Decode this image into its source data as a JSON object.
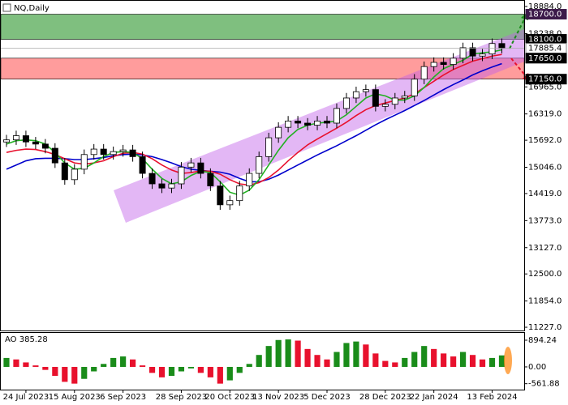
{
  "chart_data": [
    {
      "type": "candlestick",
      "title": "NQ,Daily",
      "open": [
        15650,
        15700,
        15800,
        15650,
        15600,
        15500,
        15150,
        14750,
        15000,
        15350,
        15480,
        15350,
        15420,
        15460,
        15300,
        14900,
        14650,
        14550,
        14650,
        15050,
        15150,
        14900,
        14600,
        14150,
        14250,
        14600,
        14900,
        15300,
        15750,
        16000,
        16150,
        16100,
        16050,
        16150,
        16100,
        16450,
        16700,
        16850,
        16900,
        16500,
        16550,
        16700,
        16750,
        17150,
        17450,
        17550,
        17500,
        17650,
        17900,
        17700,
        17750,
        18000
      ],
      "high": [
        15820,
        15920,
        15920,
        15770,
        15720,
        15620,
        15270,
        15120,
        15470,
        15600,
        15600,
        15540,
        15580,
        15580,
        15420,
        15020,
        14770,
        14770,
        15170,
        15270,
        15270,
        15020,
        14720,
        14370,
        14720,
        15020,
        15420,
        15870,
        16120,
        16270,
        16270,
        16220,
        16270,
        16270,
        16570,
        16820,
        16970,
        17020,
        17020,
        16670,
        16820,
        16870,
        17270,
        17570,
        17670,
        17670,
        17770,
        18020,
        18020,
        17870,
        18120,
        18120
      ],
      "low": [
        15530,
        15580,
        15530,
        15480,
        15380,
        15030,
        14630,
        14630,
        14880,
        15230,
        15230,
        15230,
        15300,
        15180,
        14780,
        14530,
        14430,
        14430,
        14530,
        14930,
        14780,
        14480,
        14030,
        14030,
        14130,
        14480,
        14780,
        15180,
        15630,
        15880,
        15980,
        15930,
        15930,
        15980,
        15980,
        16330,
        16580,
        16730,
        16380,
        16380,
        16430,
        16580,
        16630,
        17030,
        17330,
        17380,
        17380,
        17530,
        17580,
        17580,
        17630,
        17765.4
      ],
      "close": [
        15700,
        15800,
        15650,
        15600,
        15500,
        15150,
        14750,
        15000,
        15350,
        15480,
        15350,
        15420,
        15460,
        15300,
        14900,
        14650,
        14550,
        14650,
        15050,
        15150,
        14900,
        14600,
        14150,
        14250,
        14600,
        14900,
        15300,
        15750,
        16000,
        16150,
        16100,
        16050,
        16150,
        16100,
        16450,
        16700,
        16850,
        16900,
        16500,
        16550,
        16700,
        16750,
        17150,
        17450,
        17550,
        17500,
        17650,
        17900,
        17700,
        17750,
        18000,
        17885.4
      ],
      "up_color": "#ffffff",
      "down_color": "#000000",
      "lines": [
        {
          "color": "#0000cc",
          "values": [
            15000,
            15100,
            15200,
            15250,
            15260,
            15260,
            15250,
            15230,
            15230,
            15250,
            15280,
            15320,
            15350,
            15360,
            15340,
            15300,
            15230,
            15150,
            15060,
            15000,
            14970,
            14950,
            14930,
            14880,
            14780,
            14700,
            14700,
            14760,
            14860,
            14980,
            15100,
            15220,
            15340,
            15450,
            15560,
            15680,
            15800,
            15930,
            16060,
            16180,
            16290,
            16400,
            16520,
            16640,
            16770,
            16900,
            17020,
            17130,
            17250,
            17350,
            17440,
            17520
          ]
        },
        {
          "color": "#e8112d",
          "values": [
            15400,
            15450,
            15480,
            15470,
            15420,
            15350,
            15250,
            15150,
            15120,
            15150,
            15200,
            15300,
            15380,
            15400,
            15360,
            15250,
            15100,
            14980,
            14900,
            14920,
            14960,
            14950,
            14880,
            14750,
            14650,
            14620,
            14680,
            14800,
            14980,
            15200,
            15400,
            15580,
            15720,
            15850,
            15980,
            16120,
            16280,
            16420,
            16520,
            16580,
            16640,
            16700,
            16800,
            16950,
            17100,
            17250,
            17380,
            17480,
            17580,
            17640,
            17700,
            17740
          ]
        },
        {
          "color": "#22b122",
          "values": [
            15600,
            15680,
            15700,
            15680,
            15600,
            15400,
            15150,
            15000,
            15020,
            15150,
            15300,
            15400,
            15420,
            15400,
            15250,
            15000,
            14780,
            14650,
            14700,
            14850,
            14950,
            14920,
            14700,
            14450,
            14380,
            14500,
            14750,
            15100,
            15450,
            15750,
            15950,
            16050,
            16100,
            16120,
            16150,
            16300,
            16500,
            16700,
            16800,
            16750,
            16650,
            16650,
            16750,
            16950,
            17200,
            17400,
            17500,
            17600,
            17750,
            17780,
            17800,
            17850
          ]
        }
      ],
      "zones": [
        {
          "from": 18100,
          "to": 18700,
          "color": "#7fbf7f"
        },
        {
          "from": 17150,
          "to": 17650,
          "color": "#ff9c9c"
        }
      ],
      "ylim": [
        11150,
        19039
      ],
      "yticks": [
        {
          "value": 18884,
          "label": "18884.0"
        },
        {
          "value": 18238,
          "label": "18238.0"
        },
        {
          "value": 16965,
          "label": "16965.0"
        },
        {
          "value": 16319,
          "label": "16319.0"
        },
        {
          "value": 15692,
          "label": "15692.0"
        },
        {
          "value": 15046,
          "label": "15046.0"
        },
        {
          "value": 14419,
          "label": "14419.0"
        },
        {
          "value": 13773,
          "label": "13773.0"
        },
        {
          "value": 13127,
          "label": "13127.0"
        },
        {
          "value": 12500,
          "label": "12500.0"
        },
        {
          "value": 11854,
          "label": "11854.0"
        },
        {
          "value": 11227,
          "label": "11227.0"
        }
      ],
      "price_levels": [
        {
          "value": 18700,
          "label": "18700.0",
          "color": "#3c1a4a"
        },
        {
          "value": 18100,
          "label": "18100.0",
          "color": "#000000"
        },
        {
          "value": 17885.4,
          "label": "17885.4",
          "color": "#ffffff"
        },
        {
          "value": 17650,
          "label": "17650.0",
          "color": "#000000"
        },
        {
          "value": 17150,
          "label": "17150.0",
          "color": "#000000"
        }
      ]
    },
    {
      "type": "bar",
      "title": "AO 385.28",
      "categories": [
        null,
        null,
        "24 Jul 2023",
        null,
        null,
        null,
        null,
        "15 Aug 2023",
        null,
        null,
        null,
        null,
        "6 Sep 2023",
        null,
        null,
        null,
        null,
        null,
        "28 Sep 2023",
        null,
        null,
        null,
        null,
        "20 Oct 2023",
        null,
        null,
        null,
        null,
        "13 Nov 2023",
        null,
        null,
        null,
        null,
        "5 Dec 2023",
        null,
        null,
        null,
        null,
        null,
        "28 Dec 2023",
        null,
        null,
        null,
        null,
        "22 Jan 2024",
        null,
        null,
        null,
        null,
        null,
        "13 Feb 2024",
        null
      ],
      "values": [
        300,
        250,
        150,
        50,
        -100,
        -300,
        -500,
        -560,
        -400,
        -150,
        100,
        300,
        350,
        250,
        50,
        -200,
        -350,
        -300,
        -150,
        -50,
        -200,
        -350,
        -560,
        -450,
        -200,
        100,
        400,
        700,
        900,
        920,
        880,
        600,
        400,
        250,
        500,
        800,
        850,
        750,
        450,
        200,
        150,
        300,
        500,
        700,
        600,
        450,
        350,
        500,
        400,
        250,
        300,
        385.28
      ],
      "up_color": "#1a8c1a",
      "down_color": "#e8112d",
      "ylim": [
        -760,
        1165
      ],
      "yticks": [
        894.24,
        {
          "value": 0,
          "label": "0.00"
        },
        -561.88
      ]
    }
  ]
}
